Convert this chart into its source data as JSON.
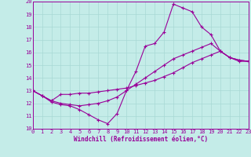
{
  "xlabel": "Windchill (Refroidissement éolien,°C)",
  "xlim": [
    0,
    23
  ],
  "ylim": [
    10,
    20
  ],
  "yticks": [
    10,
    11,
    12,
    13,
    14,
    15,
    16,
    17,
    18,
    19,
    20
  ],
  "xticks": [
    0,
    1,
    2,
    3,
    4,
    5,
    6,
    7,
    8,
    9,
    10,
    11,
    12,
    13,
    14,
    15,
    16,
    17,
    18,
    19,
    20,
    21,
    22,
    23
  ],
  "bg_color": "#c4ece8",
  "grid_color": "#a8d8d4",
  "line_color": "#990099",
  "line1_y": [
    13.0,
    12.6,
    12.1,
    11.9,
    11.8,
    11.5,
    11.1,
    10.7,
    10.4,
    11.2,
    13.0,
    14.5,
    16.5,
    16.7,
    17.6,
    19.8,
    19.5,
    19.2,
    18.0,
    17.4,
    16.1,
    15.6,
    15.3,
    15.3
  ],
  "line2_y": [
    13.0,
    12.6,
    12.2,
    12.7,
    12.7,
    12.8,
    12.8,
    12.9,
    13.0,
    13.1,
    13.2,
    13.4,
    13.6,
    13.8,
    14.1,
    14.4,
    14.8,
    15.2,
    15.5,
    15.8,
    16.1,
    15.6,
    15.4,
    15.3
  ],
  "line3_y": [
    13.0,
    12.6,
    12.2,
    12.0,
    11.9,
    11.8,
    11.9,
    12.0,
    12.2,
    12.5,
    13.0,
    13.5,
    14.0,
    14.5,
    15.0,
    15.5,
    15.8,
    16.1,
    16.4,
    16.7,
    16.1,
    15.6,
    15.4,
    15.3
  ],
  "tick_fontsize": 5.0,
  "xlabel_fontsize": 5.5
}
